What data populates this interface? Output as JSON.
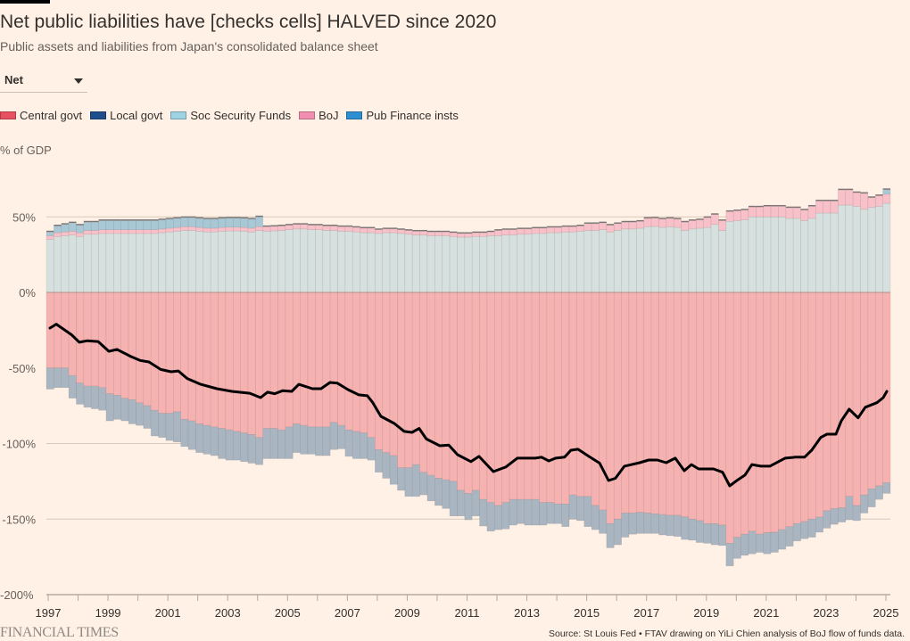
{
  "header": {
    "title": "Net public liabilities have [checks cells] HALVED since 2020",
    "subtitle": "Public assets and liabilities from Japan's consolidated balance sheet"
  },
  "dropdown": {
    "selected": "Net"
  },
  "footer": {
    "logo": "FINANCIAL TIMES",
    "source": "Source: St Louis Fed • FTAV drawing on YiLi Chien analysis of BoJ flow of funds data."
  },
  "chart_data": {
    "type": "bar",
    "stacked": true,
    "ylabel": "% of GDP",
    "ylim": [
      -200,
      75
    ],
    "yticks": [
      50,
      0,
      -50,
      -100,
      -150,
      -200
    ],
    "ytick_labels": [
      "50%",
      "0%",
      "-50%",
      "-100%",
      "-150%",
      "-200%"
    ],
    "xticks": [
      "1997",
      "1999",
      "2001",
      "2003",
      "2005",
      "2007",
      "2009",
      "2011",
      "2013",
      "2015",
      "2017",
      "2019",
      "2021",
      "2023",
      "2025"
    ],
    "x_start": "1997 Q1",
    "x_end": "2025 Q1",
    "frequency": "quarterly",
    "grid": true,
    "legend_position": "top",
    "legend": [
      {
        "name": "Central govt",
        "color": "#e8515f"
      },
      {
        "name": "Local govt",
        "color": "#1f4e8c"
      },
      {
        "name": "Soc Security Funds",
        "color": "#9dd3e3"
      },
      {
        "name": "BoJ",
        "color": "#f28fb0"
      },
      {
        "name": "Pub Finance insts",
        "color": "#2b8fd0"
      }
    ],
    "series": [
      {
        "name": "Central govt",
        "fill": "#f6b2b1",
        "values": [
          -50,
          -50,
          -50,
          -55,
          -60,
          -62,
          -62,
          -63,
          -67,
          -68,
          -70,
          -71,
          -73,
          -75,
          -78,
          -80,
          -80,
          -79,
          -84,
          -85,
          -87,
          -88,
          -89,
          -90,
          -91,
          -92,
          -93,
          -94,
          -96,
          -90,
          -90,
          -91,
          -89,
          -87,
          -88,
          -89,
          -89,
          -89,
          -86,
          -88,
          -91,
          -92,
          -93,
          -96,
          -104,
          -106,
          -108,
          -116,
          -116,
          -114,
          -119,
          -121,
          -123,
          -124,
          -125,
          -131,
          -133,
          -131,
          -137,
          -139,
          -141,
          -139,
          -137,
          -137,
          -137,
          -137,
          -139,
          -139,
          -140,
          -140,
          -134,
          -135,
          -135,
          -141,
          -144,
          -153,
          -150,
          -146,
          -146,
          -145.5,
          -146,
          -146.5,
          -147,
          -147.5,
          -147.5,
          -148.5,
          -150,
          -151,
          -153,
          -153,
          -154,
          -166,
          -162,
          -160,
          -158,
          -160,
          -159,
          -158.7,
          -157,
          -155,
          -153,
          -151.6,
          -150,
          -148.7,
          -144.5,
          -143,
          -142.5,
          -135,
          -141,
          -134,
          -130,
          -128,
          -126
        ]
      },
      {
        "name": "Local govt",
        "fill": "#a9b5c1",
        "values": [
          -14,
          -13,
          -13,
          -15,
          -14,
          -14,
          -15,
          -15,
          -18,
          -16,
          -15,
          -16,
          -15,
          -15,
          -17,
          -16,
          -18,
          -20,
          -18,
          -19,
          -19,
          -19,
          -19,
          -20,
          -20,
          -19,
          -19,
          -19,
          -18,
          -20,
          -20,
          -19,
          -21,
          -19,
          -19,
          -18,
          -19,
          -19,
          -18,
          -15.5,
          -17.5,
          -18,
          -17,
          -15,
          -15,
          -17,
          -19,
          -15,
          -19,
          -21,
          -15,
          -17,
          -18,
          -19,
          -23,
          -17,
          -17.5,
          -17,
          -17.6,
          -19,
          -16,
          -17.5,
          -17,
          -16,
          -17,
          -17,
          -15,
          -14,
          -13,
          -15,
          -16,
          -16,
          -20,
          -16,
          -15.5,
          -16,
          -17,
          -16,
          -14,
          -14,
          -13.5,
          -13,
          -13.5,
          -13.5,
          -14,
          -15,
          -14,
          -14.5,
          -13,
          -14,
          -13.5,
          -15,
          -14,
          -14,
          -15,
          -12,
          -14,
          -13.3,
          -13,
          -13,
          -11.5,
          -11.4,
          -12,
          -10,
          -11.5,
          -10.5,
          -9.5,
          -15.5,
          -10,
          -12,
          -12,
          -9,
          -7
        ]
      },
      {
        "name": "Soc Security Funds",
        "fill": "#d6e1df",
        "values": [
          35,
          37,
          37.5,
          38,
          37,
          38.5,
          38.5,
          39,
          39,
          39,
          39,
          39,
          39,
          39,
          39,
          39.5,
          40,
          40.5,
          41,
          41,
          40.5,
          40,
          40,
          40.5,
          40.7,
          40.7,
          40.5,
          40,
          41,
          40.5,
          40.7,
          41,
          41.5,
          42,
          42,
          41.5,
          41.5,
          41,
          41,
          40.5,
          40.5,
          40,
          39.5,
          39.5,
          39,
          39.5,
          39.5,
          39,
          38.5,
          38,
          38,
          37.5,
          37.5,
          37.5,
          37,
          36.5,
          36.5,
          37,
          37,
          37.5,
          37.5,
          38,
          38,
          38.5,
          38.5,
          39,
          39,
          39.5,
          39.5,
          40,
          40,
          40.5,
          41,
          41,
          41.5,
          40,
          41,
          42,
          42,
          42.5,
          43.5,
          43.7,
          43,
          43.5,
          43,
          41,
          42,
          42.5,
          43,
          45,
          41,
          47,
          47.5,
          48,
          50,
          50,
          50,
          50,
          50,
          49,
          49,
          47.5,
          49,
          52.5,
          52.5,
          52.5,
          57.8,
          57.8,
          57,
          55,
          56.2,
          57,
          59
        ]
      },
      {
        "name": "BoJ",
        "fill": "#f8c0c9",
        "values": [
          2.5,
          2.5,
          2.5,
          2.5,
          2.5,
          2.5,
          2.5,
          2.5,
          2.5,
          2.5,
          2.5,
          2.5,
          2.5,
          2.5,
          2.5,
          2.5,
          2.5,
          2.5,
          2.5,
          2.5,
          2.5,
          2.5,
          2.5,
          2.5,
          2.5,
          2.5,
          2.5,
          2.5,
          2.5,
          3,
          3,
          3,
          3,
          3,
          3,
          3,
          3,
          3,
          3,
          3,
          3,
          3,
          3,
          3,
          2.5,
          2.5,
          2.5,
          2.5,
          2.5,
          2.5,
          2.5,
          2.5,
          2.5,
          2.5,
          2.5,
          2.5,
          2.5,
          2.5,
          2.5,
          2.5,
          3.5,
          3.5,
          3.5,
          3.5,
          3.5,
          3.5,
          3.5,
          3.5,
          3.5,
          3.5,
          3.5,
          3.5,
          4.5,
          4.5,
          4.5,
          4.5,
          4.5,
          4.5,
          4.5,
          4.5,
          5.5,
          5.5,
          5.5,
          5.5,
          5.5,
          5.5,
          5.5,
          5.5,
          6.5,
          6.5,
          6.5,
          6.5,
          6.5,
          6.5,
          6.5,
          6.5,
          7,
          7,
          7,
          7,
          7,
          7,
          8,
          8,
          8,
          8,
          10,
          10,
          9,
          10.5,
          6.5,
          7,
          6
        ]
      },
      {
        "name": "Pub Finance insts",
        "fill": "#a8c8d6",
        "values": [
          2.5,
          4.5,
          5,
          5.5,
          5,
          5.5,
          5.5,
          6,
          6,
          6,
          6,
          6,
          6,
          6,
          6,
          6,
          6,
          6,
          6,
          6,
          6,
          6,
          6,
          6,
          6,
          6,
          6,
          6,
          6.5,
          0,
          0,
          0,
          0,
          0,
          0,
          0,
          0,
          0,
          0,
          0,
          0,
          0,
          0,
          0,
          0,
          0,
          0,
          0,
          0,
          0,
          0,
          0,
          0,
          0,
          0,
          0,
          0,
          0,
          0,
          0,
          0,
          0,
          0,
          0,
          0,
          0,
          0,
          0,
          0,
          0,
          0,
          0,
          0,
          0,
          0,
          0,
          0,
          0,
          0,
          0,
          0,
          0,
          0,
          0,
          0,
          0,
          0,
          0,
          0,
          0,
          0,
          0,
          0,
          0,
          0,
          0,
          0,
          0,
          0,
          0,
          0,
          0,
          0,
          0,
          0,
          0,
          0,
          0,
          0,
          0,
          0,
          0,
          3
        ]
      }
    ],
    "net_line": {
      "color": "#000000",
      "points": [
        [
          1997.06,
          -23.6
        ],
        [
          1997.27,
          -21
        ],
        [
          1997.78,
          -28
        ],
        [
          1998.04,
          -33
        ],
        [
          1998.31,
          -32
        ],
        [
          1998.67,
          -32.5
        ],
        [
          1999.03,
          -39
        ],
        [
          1999.3,
          -37.7
        ],
        [
          1999.77,
          -42.5
        ],
        [
          2000.07,
          -45
        ],
        [
          2000.37,
          -46
        ],
        [
          2000.76,
          -51
        ],
        [
          2001.11,
          -52.5
        ],
        [
          2001.35,
          -52
        ],
        [
          2001.65,
          -57
        ],
        [
          2002.1,
          -60.8
        ],
        [
          2002.64,
          -63.7
        ],
        [
          2003.14,
          -65.5
        ],
        [
          2003.74,
          -66.7
        ],
        [
          2004.1,
          -69.6
        ],
        [
          2004.33,
          -66
        ],
        [
          2004.57,
          -67
        ],
        [
          2004.84,
          -65
        ],
        [
          2005.14,
          -65.5
        ],
        [
          2005.38,
          -60.8
        ],
        [
          2005.83,
          -63.7
        ],
        [
          2006.12,
          -63.7
        ],
        [
          2006.42,
          -59.6
        ],
        [
          2006.66,
          -60
        ],
        [
          2007.02,
          -64.3
        ],
        [
          2007.38,
          -67.8
        ],
        [
          2007.67,
          -68.4
        ],
        [
          2007.85,
          -73
        ],
        [
          2008.12,
          -82
        ],
        [
          2008.57,
          -86.7
        ],
        [
          2008.9,
          -92
        ],
        [
          2009.16,
          -92.6
        ],
        [
          2009.4,
          -90
        ],
        [
          2009.64,
          -97
        ],
        [
          2010.09,
          -101.5
        ],
        [
          2010.39,
          -101
        ],
        [
          2010.68,
          -107.4
        ],
        [
          2011.13,
          -112
        ],
        [
          2011.4,
          -108.5
        ],
        [
          2011.88,
          -118.6
        ],
        [
          2012.29,
          -115.6
        ],
        [
          2012.68,
          -109.7
        ],
        [
          2013.28,
          -109.7
        ],
        [
          2013.49,
          -109
        ],
        [
          2013.73,
          -111.5
        ],
        [
          2013.96,
          -109.7
        ],
        [
          2014.26,
          -109
        ],
        [
          2014.47,
          -104.4
        ],
        [
          2014.71,
          -103.8
        ],
        [
          2015.07,
          -108.5
        ],
        [
          2015.43,
          -113
        ],
        [
          2015.73,
          -124.5
        ],
        [
          2015.96,
          -123
        ],
        [
          2016.26,
          -115
        ],
        [
          2016.77,
          -112.7
        ],
        [
          2017.07,
          -110.9
        ],
        [
          2017.36,
          -110.9
        ],
        [
          2017.66,
          -112.7
        ],
        [
          2017.96,
          -109.7
        ],
        [
          2018.26,
          -118
        ],
        [
          2018.5,
          -113.9
        ],
        [
          2018.74,
          -116.8
        ],
        [
          2019.24,
          -116.8
        ],
        [
          2019.54,
          -119
        ],
        [
          2019.78,
          -128
        ],
        [
          2020.05,
          -124
        ],
        [
          2020.29,
          -120.9
        ],
        [
          2020.52,
          -113.9
        ],
        [
          2020.82,
          -115
        ],
        [
          2021.12,
          -115
        ],
        [
          2021.63,
          -109.7
        ],
        [
          2021.98,
          -109
        ],
        [
          2022.28,
          -109
        ],
        [
          2022.52,
          -104.4
        ],
        [
          2022.82,
          -96
        ],
        [
          2023.03,
          -93.8
        ],
        [
          2023.33,
          -93.8
        ],
        [
          2023.51,
          -85
        ],
        [
          2023.77,
          -77.3
        ],
        [
          2024.07,
          -83
        ],
        [
          2024.31,
          -76
        ],
        [
          2024.7,
          -73
        ],
        [
          2024.91,
          -69.6
        ],
        [
          2025.03,
          -65.5
        ]
      ]
    }
  }
}
